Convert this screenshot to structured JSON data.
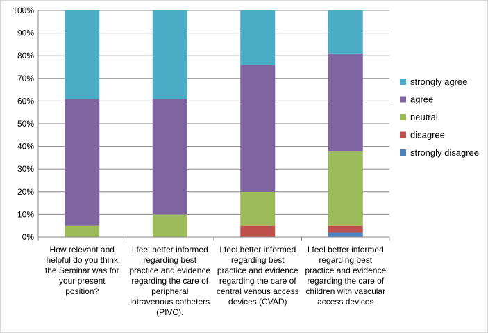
{
  "chart_data": {
    "type": "bar",
    "stacked": true,
    "percent": true,
    "categories": [
      [
        "How relevant and",
        "helpful do you think",
        "the Seminar was for",
        "your present",
        "position?"
      ],
      [
        "I feel better informed",
        "regarding best",
        "practice and evidence",
        "regarding the care of",
        "peripheral",
        "intravenous catheters",
        "(PIVC)."
      ],
      [
        "I feel better informed",
        "regarding best",
        "practice and evidence",
        "regarding the care of",
        "central venous access",
        "devices (CVAD)"
      ],
      [
        "I feel better informed",
        "regarding best",
        "practice and evidence",
        "regarding the care of",
        "children with vascular",
        "access devices"
      ]
    ],
    "series": [
      {
        "name": "strongly disagree",
        "color": "#4f81bd",
        "values": [
          0,
          0,
          0,
          2
        ]
      },
      {
        "name": "disagree",
        "color": "#c0504d",
        "values": [
          0,
          0,
          5,
          3
        ]
      },
      {
        "name": "neutral",
        "color": "#9bbb59",
        "values": [
          5,
          10,
          15,
          33
        ]
      },
      {
        "name": "agree",
        "color": "#8064a2",
        "values": [
          56,
          51,
          56,
          43
        ]
      },
      {
        "name": "strongly agree",
        "color": "#4bacc6",
        "values": [
          39,
          39,
          24,
          19
        ]
      }
    ],
    "ylim": [
      0,
      100
    ],
    "yticks": [
      "0%",
      "10%",
      "20%",
      "30%",
      "40%",
      "50%",
      "60%",
      "70%",
      "80%",
      "90%",
      "100%"
    ],
    "grid": true,
    "legend_position": "right"
  }
}
